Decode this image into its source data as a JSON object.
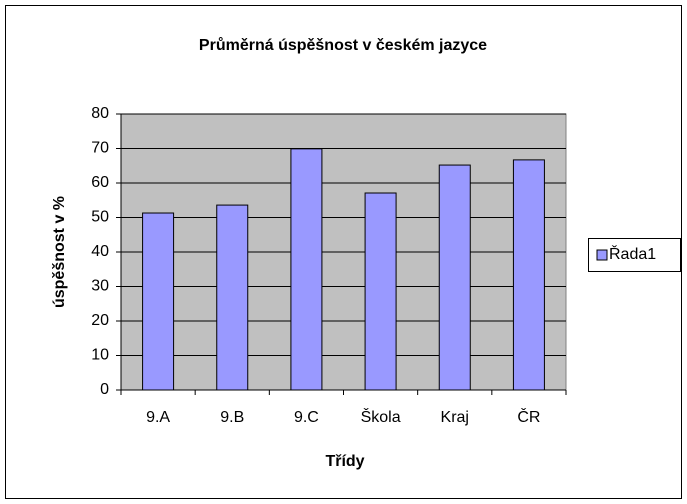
{
  "chart_data": {
    "type": "bar",
    "title": "Průměrná úspěšnost v českém jazyce",
    "x_label": "Třídy",
    "y_label": "úspěšnost v %",
    "categories": [
      "9.A",
      "9.B",
      "9.C",
      "Škola",
      "Kraj",
      "ČR"
    ],
    "series": [
      {
        "name": "Řada1",
        "color": "#9999ff",
        "values": [
          51.3,
          53.6,
          69.9,
          57.1,
          65.2,
          66.7
        ]
      }
    ],
    "ylim": [
      0,
      80
    ],
    "yticks": [
      0,
      10,
      20,
      30,
      40,
      50,
      60,
      70,
      80
    ],
    "grid": true,
    "legend": "right"
  }
}
